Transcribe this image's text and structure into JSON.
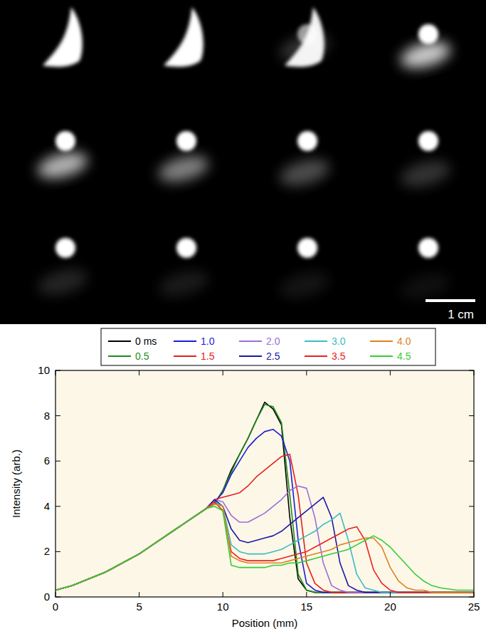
{
  "image_panel": {
    "scale_bar_label": "1 cm"
  },
  "chart_data": {
    "type": "line",
    "xlabel": "Position (mm)",
    "ylabel": "Intensity (arb.)",
    "xlim": [
      0,
      25
    ],
    "ylim": [
      0,
      10
    ],
    "xticks": [
      0,
      5,
      10,
      15,
      20,
      25
    ],
    "yticks": [
      0,
      2,
      4,
      6,
      8,
      10
    ],
    "legend": "top",
    "x": [
      0,
      1,
      2,
      3,
      4,
      5,
      6,
      7,
      8,
      9,
      9.5,
      10,
      10.5,
      11,
      11.5,
      12,
      12.5,
      13,
      13.5,
      14,
      14.5,
      15,
      15.5,
      16,
      16.5,
      17,
      17.5,
      18,
      18.5,
      19,
      19.5,
      20,
      20.5,
      21,
      21.5,
      22,
      22.5,
      23,
      24,
      25
    ],
    "series": [
      {
        "name": "0 ms",
        "color": "#000000",
        "values": [
          0.3,
          0.5,
          0.8,
          1.1,
          1.5,
          1.9,
          2.4,
          2.9,
          3.4,
          3.9,
          4.1,
          4.7,
          5.6,
          6.3,
          7.0,
          7.8,
          8.6,
          8.3,
          7.6,
          3.5,
          0.8,
          0.3,
          0.2,
          0.2,
          0.2,
          0.2,
          0.2,
          0.2,
          0.2,
          0.2,
          0.2,
          0.2,
          0.2,
          0.2,
          0.2,
          0.2,
          0.2,
          0.2,
          0.2,
          0.2
        ]
      },
      {
        "name": "0.5",
        "color": "#1e8c1e",
        "values": [
          0.3,
          0.5,
          0.8,
          1.1,
          1.5,
          1.9,
          2.4,
          2.9,
          3.4,
          3.9,
          4.1,
          4.7,
          5.5,
          6.3,
          7.0,
          7.8,
          8.5,
          8.4,
          7.7,
          4.5,
          1.0,
          0.3,
          0.2,
          0.2,
          0.2,
          0.2,
          0.2,
          0.2,
          0.2,
          0.2,
          0.2,
          0.2,
          0.2,
          0.2,
          0.2,
          0.2,
          0.2,
          0.2,
          0.2,
          0.2
        ]
      },
      {
        "name": "1.0",
        "color": "#1c1cd6",
        "values": [
          0.3,
          0.5,
          0.8,
          1.1,
          1.5,
          1.9,
          2.4,
          2.9,
          3.4,
          3.9,
          4.2,
          4.6,
          5.4,
          6.0,
          6.6,
          7.0,
          7.3,
          7.4,
          7.1,
          6.0,
          2.5,
          0.6,
          0.3,
          0.2,
          0.2,
          0.2,
          0.2,
          0.2,
          0.2,
          0.2,
          0.2,
          0.2,
          0.2,
          0.2,
          0.2,
          0.2,
          0.2,
          0.2,
          0.2,
          0.2
        ]
      },
      {
        "name": "1.5",
        "color": "#e3211c",
        "values": [
          0.3,
          0.5,
          0.8,
          1.1,
          1.5,
          1.9,
          2.4,
          2.9,
          3.4,
          3.9,
          4.3,
          4.4,
          4.5,
          4.6,
          4.9,
          5.3,
          5.6,
          5.9,
          6.2,
          6.3,
          4.5,
          1.5,
          0.6,
          0.3,
          0.2,
          0.2,
          0.2,
          0.2,
          0.2,
          0.2,
          0.2,
          0.2,
          0.2,
          0.2,
          0.2,
          0.2,
          0.2,
          0.2,
          0.2,
          0.2
        ]
      },
      {
        "name": "2.0",
        "color": "#9b6fd6",
        "values": [
          0.3,
          0.5,
          0.8,
          1.1,
          1.5,
          1.9,
          2.4,
          2.9,
          3.4,
          3.9,
          4.3,
          4.2,
          3.6,
          3.3,
          3.3,
          3.5,
          3.7,
          4.0,
          4.3,
          4.7,
          4.9,
          4.8,
          3.5,
          1.5,
          0.5,
          0.3,
          0.2,
          0.2,
          0.2,
          0.2,
          0.2,
          0.2,
          0.2,
          0.2,
          0.2,
          0.2,
          0.2,
          0.2,
          0.2,
          0.2
        ]
      },
      {
        "name": "2.5",
        "color": "#1a1aa8",
        "values": [
          0.3,
          0.5,
          0.8,
          1.1,
          1.5,
          1.9,
          2.4,
          2.9,
          3.4,
          3.9,
          4.3,
          4.0,
          3.0,
          2.5,
          2.4,
          2.5,
          2.6,
          2.7,
          2.9,
          3.2,
          3.5,
          3.8,
          4.1,
          4.4,
          3.5,
          1.5,
          0.5,
          0.3,
          0.2,
          0.2,
          0.2,
          0.2,
          0.2,
          0.2,
          0.2,
          0.2,
          0.2,
          0.2,
          0.2,
          0.2
        ]
      },
      {
        "name": "3.0",
        "color": "#3cbcc4",
        "values": [
          0.3,
          0.5,
          0.8,
          1.1,
          1.5,
          1.9,
          2.4,
          2.9,
          3.4,
          3.9,
          4.2,
          4.0,
          2.3,
          2.0,
          1.9,
          1.9,
          1.9,
          2.0,
          2.1,
          2.3,
          2.5,
          2.7,
          2.9,
          3.2,
          3.4,
          3.7,
          2.5,
          1.0,
          0.4,
          0.3,
          0.2,
          0.2,
          0.2,
          0.2,
          0.2,
          0.2,
          0.2,
          0.2,
          0.2,
          0.2
        ]
      },
      {
        "name": "3.5",
        "color": "#e8231f",
        "values": [
          0.3,
          0.5,
          0.8,
          1.1,
          1.5,
          1.9,
          2.4,
          2.9,
          3.4,
          3.9,
          4.2,
          3.8,
          2.0,
          1.7,
          1.6,
          1.6,
          1.6,
          1.6,
          1.7,
          1.8,
          1.9,
          2.0,
          2.2,
          2.4,
          2.6,
          2.8,
          3.0,
          3.1,
          2.5,
          1.2,
          0.6,
          0.3,
          0.2,
          0.2,
          0.2,
          0.2,
          0.2,
          0.2,
          0.2,
          0.2
        ]
      },
      {
        "name": "4.0",
        "color": "#e0821e",
        "values": [
          0.3,
          0.5,
          0.8,
          1.1,
          1.5,
          1.9,
          2.4,
          2.9,
          3.4,
          3.9,
          4.1,
          4.0,
          1.8,
          1.6,
          1.5,
          1.5,
          1.5,
          1.5,
          1.5,
          1.6,
          1.7,
          1.8,
          1.9,
          2.0,
          2.1,
          2.3,
          2.4,
          2.5,
          2.6,
          2.6,
          2.2,
          1.3,
          0.7,
          0.4,
          0.3,
          0.3,
          0.2,
          0.2,
          0.2,
          0.2
        ]
      },
      {
        "name": "4.5",
        "color": "#35cc35",
        "values": [
          0.3,
          0.5,
          0.8,
          1.1,
          1.5,
          1.9,
          2.4,
          2.9,
          3.4,
          3.9,
          4.0,
          3.8,
          1.4,
          1.3,
          1.3,
          1.3,
          1.3,
          1.4,
          1.4,
          1.5,
          1.5,
          1.6,
          1.7,
          1.8,
          1.9,
          2.0,
          2.1,
          2.3,
          2.5,
          2.7,
          2.5,
          2.2,
          1.8,
          1.4,
          1.0,
          0.7,
          0.5,
          0.4,
          0.3,
          0.3
        ]
      }
    ]
  }
}
